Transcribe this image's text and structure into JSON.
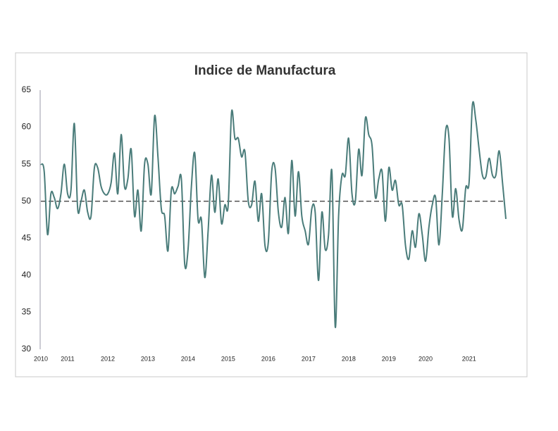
{
  "chart_data": {
    "type": "line",
    "title": "Indice de Manufactura",
    "categories": [
      "2010",
      null,
      null,
      null,
      null,
      null,
      null,
      null,
      "2011",
      null,
      null,
      null,
      null,
      null,
      null,
      null,
      null,
      null,
      null,
      null,
      "2012",
      null,
      null,
      null,
      null,
      null,
      null,
      null,
      null,
      null,
      null,
      null,
      "2013",
      null,
      null,
      null,
      null,
      null,
      null,
      null,
      null,
      null,
      null,
      null,
      "2014",
      null,
      null,
      null,
      null,
      null,
      null,
      null,
      null,
      null,
      null,
      null,
      "2015",
      null,
      null,
      null,
      null,
      null,
      null,
      null,
      null,
      null,
      null,
      null,
      "2016",
      null,
      null,
      null,
      null,
      null,
      null,
      null,
      null,
      null,
      null,
      null,
      "2017",
      null,
      null,
      null,
      null,
      null,
      null,
      null,
      null,
      null,
      null,
      null,
      "2018",
      null,
      null,
      null,
      null,
      null,
      null,
      null,
      null,
      null,
      null,
      null,
      "2019",
      null,
      null,
      null,
      null,
      null,
      null,
      null,
      null,
      null,
      null,
      "2020",
      null,
      null,
      null,
      null,
      null,
      null,
      null,
      null,
      null,
      null,
      null,
      null,
      "2021",
      null,
      null,
      null,
      null,
      null,
      null,
      null,
      null,
      null,
      null,
      null
    ],
    "values": [
      55,
      54,
      45.5,
      51,
      50.5,
      49,
      51,
      55,
      51,
      51.5,
      60.5,
      49,
      50,
      51.5,
      48.5,
      48,
      54.5,
      54.5,
      52,
      51,
      51,
      52.5,
      56.5,
      51,
      59,
      52,
      53,
      57,
      48,
      51.5,
      46,
      55,
      55,
      51,
      61.5,
      56,
      49,
      48,
      43.3,
      51.5,
      51,
      52,
      53,
      41.5,
      43.5,
      52,
      56.5,
      47.5,
      47.5,
      39.7,
      46,
      53.5,
      48.5,
      53,
      47,
      49.5,
      49.5,
      62,
      58.5,
      58.5,
      56,
      56.7,
      50,
      49.5,
      52.7,
      47.3,
      51,
      44,
      44.5,
      54,
      54.5,
      48.5,
      46.5,
      50.5,
      45.7,
      55.5,
      48,
      54,
      48,
      46,
      44.2,
      49,
      48.5,
      39.3,
      48.5,
      43.5,
      45.5,
      54,
      33,
      48,
      53.5,
      53.5,
      58.5,
      51,
      50,
      57,
      53.5,
      61.2,
      59,
      57.5,
      50.5,
      53,
      54,
      47.3,
      54.5,
      51.5,
      52.8,
      49.5,
      49.5,
      44,
      42.2,
      46,
      43.8,
      48.3,
      45.5,
      41.9,
      46.5,
      49.5,
      50.5,
      44.1,
      51,
      59.5,
      58.5,
      48,
      51.7,
      47.5,
      46.2,
      51.8,
      52.5,
      63,
      61,
      57,
      53.5,
      53.3,
      55.8,
      53.5,
      53.5,
      56.8,
      52.5,
      47.6
    ],
    "color": "#4a7c7a",
    "reference_line": 50,
    "ylim": [
      30,
      65
    ],
    "yticks": [
      30,
      35,
      40,
      45,
      50,
      55,
      60,
      65
    ]
  }
}
